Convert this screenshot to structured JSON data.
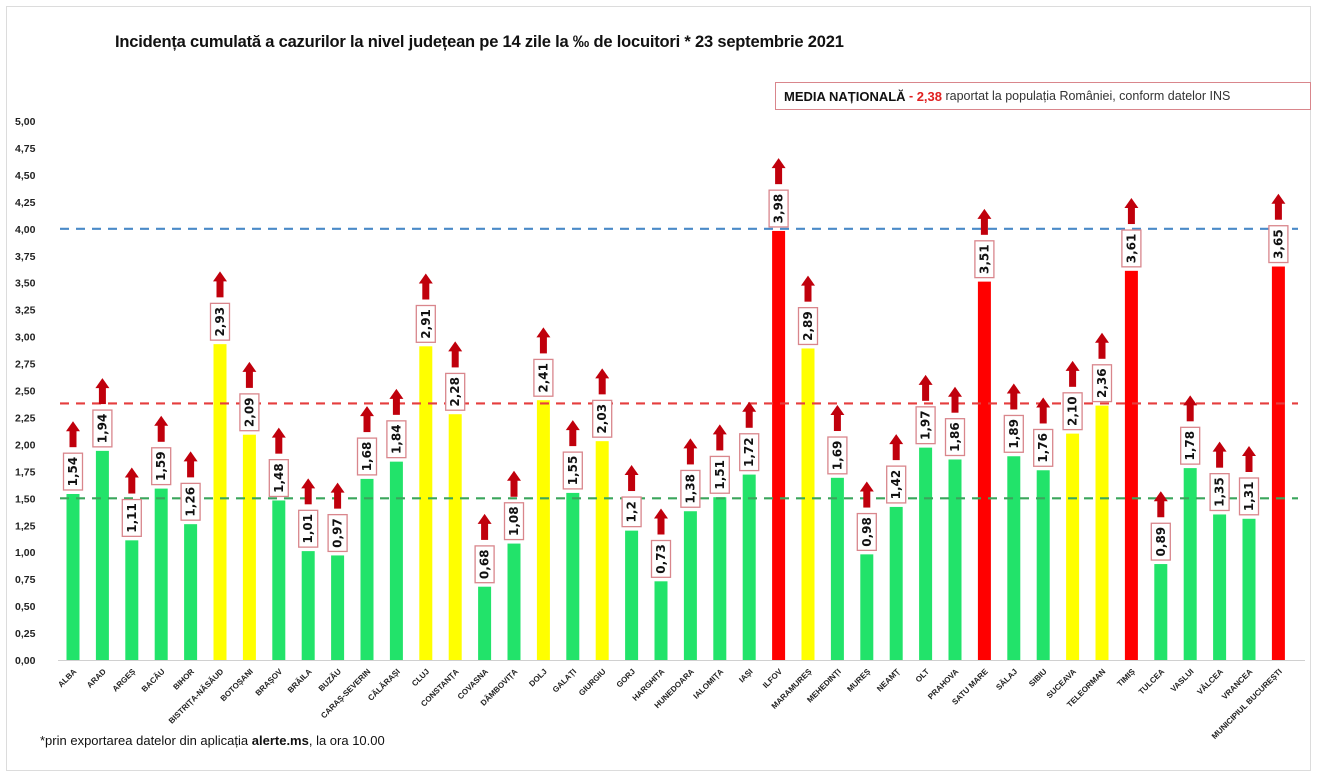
{
  "header": {
    "title": "Incidența cumulată a cazurilor la nivel județean pe 14 zile la ‰ de locuitori * 23 septembrie 2021"
  },
  "media_box": {
    "label": "MEDIA NAȚIONALĂ",
    "separator": " - ",
    "value": "2,38",
    "text": " raportat la populația României, conform datelor INS"
  },
  "footnote": {
    "prefix": "*prin exportarea datelor din aplicația ",
    "bold": "alerte.ms",
    "suffix": ", la ora 10.00"
  },
  "colors": {
    "green": "#22e36a",
    "yellow": "#ffff00",
    "red": "#ff0000",
    "arrow": "#c0000c",
    "label_border": "#d9868c",
    "line_red": "#e53e3e",
    "line_green": "#3aa55c",
    "line_blue": "#4a8ac8"
  },
  "chart_data": {
    "type": "bar",
    "title": "Incidența cumulată a cazurilor la nivel județean pe 14 zile la ‰ de locuitori * 23 septembrie 2021",
    "xlabel": "",
    "ylabel": "",
    "ylim": [
      0,
      5
    ],
    "yticks": [
      "0,00",
      "0,25",
      "0,50",
      "0,75",
      "1,00",
      "1,25",
      "1,50",
      "1,75",
      "2,00",
      "2,25",
      "2,50",
      "2,75",
      "3,00",
      "3,25",
      "3,50",
      "3,75",
      "4,00",
      "4,25",
      "4,50",
      "4,75",
      "5,00"
    ],
    "grid": false,
    "reference_lines": [
      {
        "name": "threshold-4",
        "value": 4.0,
        "color": "blue",
        "style": "dashed"
      },
      {
        "name": "national-average",
        "value": 2.38,
        "color": "red",
        "style": "dashed"
      },
      {
        "name": "threshold-1.5",
        "value": 1.5,
        "color": "green",
        "style": "dashed"
      }
    ],
    "categories": [
      "ALBA",
      "ARAD",
      "ARGEȘ",
      "BACĂU",
      "BIHOR",
      "BISTRIȚA-NĂSĂUD",
      "BOTOȘANI",
      "BRAȘOV",
      "BRĂILA",
      "BUZĂU",
      "CARAȘ-SEVERIN",
      "CĂLĂRAȘI",
      "CLUJ",
      "CONSTANȚA",
      "COVASNA",
      "DÂMBOVIȚA",
      "DOLJ",
      "GALAȚI",
      "GIURGIU",
      "GORJ",
      "HARGHITA",
      "HUNEDOARA",
      "IALOMIȚA",
      "IAȘI",
      "ILFOV",
      "MARAMUREȘ",
      "MEHEDINȚI",
      "MUREȘ",
      "NEAMȚ",
      "OLT",
      "PRAHOVA",
      "SATU MARE",
      "SĂLAJ",
      "SIBIU",
      "SUCEAVA",
      "TELEORMAN",
      "TIMIȘ",
      "TULCEA",
      "VASLUI",
      "VÂLCEA",
      "VRANCEA",
      "MUNICIPIUL BUCUREȘTI"
    ],
    "values": [
      1.54,
      1.94,
      1.11,
      1.59,
      1.26,
      2.93,
      2.09,
      1.48,
      1.01,
      0.97,
      1.68,
      1.84,
      2.91,
      2.28,
      0.68,
      1.08,
      2.41,
      1.55,
      2.03,
      1.2,
      0.73,
      1.38,
      1.51,
      1.72,
      3.98,
      2.89,
      1.69,
      0.98,
      1.42,
      1.97,
      1.86,
      3.51,
      1.89,
      1.76,
      2.1,
      2.36,
      3.61,
      0.89,
      1.78,
      1.35,
      1.31,
      3.65
    ],
    "labels": [
      "1,54",
      "1,94",
      "1,11",
      "1,59",
      "1,26",
      "2,93",
      "2,09",
      "1,48",
      "1,01",
      "0,97",
      "1,68",
      "1,84",
      "2,91",
      "2,28",
      "0,68",
      "1,08",
      "2,41",
      "1,55",
      "2,03",
      "1,2",
      "0,73",
      "1,38",
      "1,51",
      "1,72",
      "3,98",
      "2,89",
      "1,69",
      "0,98",
      "1,42",
      "1,97",
      "1,86",
      "3,51",
      "1,89",
      "1,76",
      "2,10",
      "2,36",
      "3,61",
      "0,89",
      "1,78",
      "1,35",
      "1,31",
      "3,65"
    ],
    "bar_colors": [
      "green",
      "green",
      "green",
      "green",
      "green",
      "yellow",
      "yellow",
      "green",
      "green",
      "green",
      "green",
      "green",
      "yellow",
      "yellow",
      "green",
      "green",
      "yellow",
      "green",
      "yellow",
      "green",
      "green",
      "green",
      "green",
      "green",
      "red",
      "yellow",
      "green",
      "green",
      "green",
      "green",
      "green",
      "red",
      "green",
      "green",
      "yellow",
      "yellow",
      "red",
      "green",
      "green",
      "green",
      "green",
      "red"
    ],
    "trend": "up-arrow on every bar"
  }
}
